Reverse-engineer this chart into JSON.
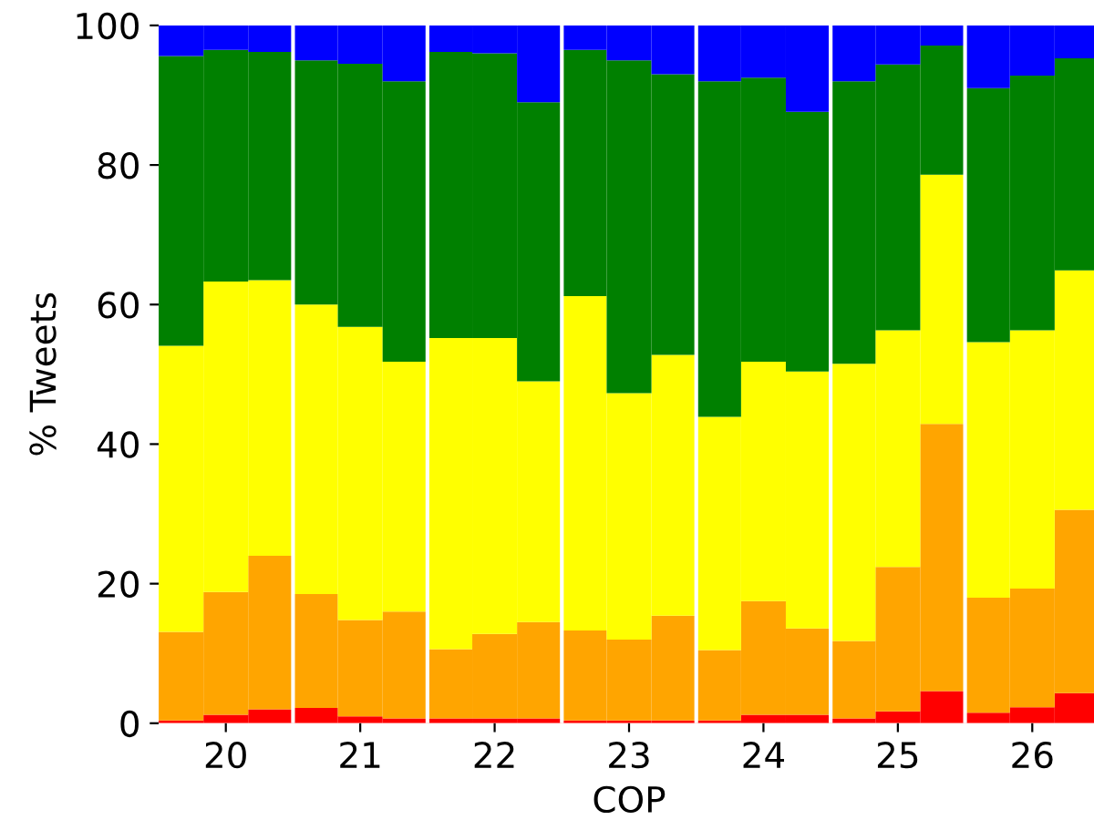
{
  "chart_data": {
    "type": "bar",
    "stacked": true,
    "xlabel": "COP",
    "ylabel": "% Tweets",
    "x": [
      19.667,
      20,
      20.333,
      20.667,
      21,
      21.333,
      21.667,
      22,
      22.333,
      22.667,
      23,
      23.333,
      23.667,
      24,
      24.333,
      24.667,
      25,
      25.333,
      25.667,
      26,
      26.333
    ],
    "series": [
      {
        "color": "#ff0000",
        "values": [
          0.4,
          1.2,
          2.0,
          2.2,
          1.0,
          0.7,
          0.7,
          0.7,
          0.7,
          0.4,
          0.4,
          0.4,
          0.4,
          1.2,
          1.2,
          0.7,
          1.7,
          4.6,
          1.5,
          2.3,
          4.3
        ]
      },
      {
        "color": "#ffa500",
        "values": [
          12.7,
          17.6,
          22.0,
          16.3,
          13.8,
          15.3,
          9.9,
          12.1,
          13.8,
          12.9,
          11.6,
          15.0,
          10.1,
          16.3,
          12.4,
          11.1,
          20.7,
          38.3,
          16.5,
          17.0,
          26.3
        ]
      },
      {
        "color": "#ffff00",
        "values": [
          41.0,
          44.5,
          39.5,
          41.5,
          42.0,
          35.8,
          44.6,
          42.4,
          34.5,
          47.9,
          35.3,
          37.4,
          33.4,
          34.3,
          36.8,
          39.7,
          33.9,
          35.7,
          36.6,
          37.0,
          34.3
        ]
      },
      {
        "color": "#008000",
        "values": [
          41.5,
          33.2,
          32.7,
          35.0,
          37.7,
          40.2,
          41.0,
          40.8,
          40.0,
          35.3,
          47.7,
          40.2,
          48.1,
          40.7,
          37.2,
          40.5,
          38.1,
          18.5,
          36.4,
          36.5,
          30.4
        ]
      },
      {
        "color": "#0000ff",
        "values": [
          4.5,
          3.5,
          3.8,
          5.0,
          5.5,
          8.0,
          3.8,
          4.0,
          11.0,
          3.5,
          5.0,
          7.0,
          8.0,
          7.5,
          12.4,
          8.0,
          5.6,
          2.9,
          9.0,
          7.2,
          4.7
        ]
      }
    ],
    "xlim": [
      19.5,
      26.5
    ],
    "xticks": [
      20,
      21,
      22,
      23,
      24,
      25,
      26
    ],
    "ylim": [
      0,
      100
    ],
    "yticks": [
      0,
      20,
      40,
      60,
      80,
      100
    ],
    "ref_lines": [
      {
        "axis": "x",
        "value": 20.5,
        "color": "#ffffff"
      },
      {
        "axis": "x",
        "value": 21.5,
        "color": "#ffffff"
      },
      {
        "axis": "x",
        "value": 22.5,
        "color": "#ffffff"
      },
      {
        "axis": "x",
        "value": 23.5,
        "color": "#ffffff"
      },
      {
        "axis": "x",
        "value": 24.5,
        "color": "#ffffff"
      },
      {
        "axis": "x",
        "value": 25.5,
        "color": "#ffffff"
      }
    ],
    "grid": false,
    "legend": false
  }
}
